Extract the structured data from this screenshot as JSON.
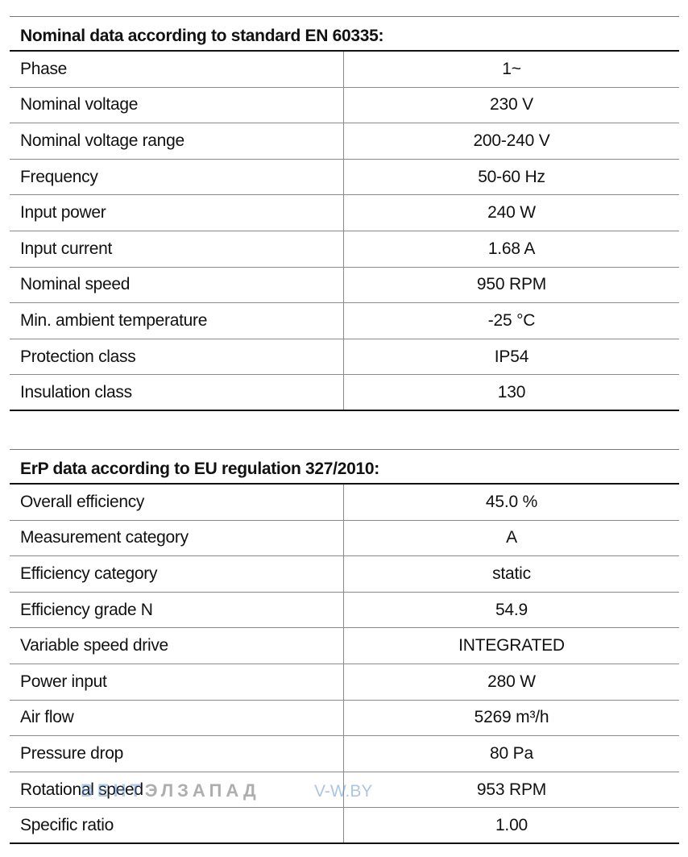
{
  "nominal": {
    "title": "Nominal data according to standard EN 60335:",
    "rows": [
      {
        "label": "Phase",
        "value": "1~"
      },
      {
        "label": "Nominal voltage",
        "value": "230 V"
      },
      {
        "label": "Nominal voltage range",
        "value": "200-240 V"
      },
      {
        "label": "Frequency",
        "value": "50-60 Hz"
      },
      {
        "label": "Input power",
        "value": "240 W"
      },
      {
        "label": "Input current",
        "value": "1.68 A"
      },
      {
        "label": "Nominal speed",
        "value": "950 RPM"
      },
      {
        "label": "Min. ambient temperature",
        "value": "-25 °C"
      },
      {
        "label": "Protection class",
        "value": "IP54"
      },
      {
        "label": "Insulation class",
        "value": "130"
      }
    ]
  },
  "erp": {
    "title": "ErP data according to EU regulation 327/2010:",
    "rows": [
      {
        "label": "Overall efficiency",
        "value": "45.0 %"
      },
      {
        "label": "Measurement category",
        "value": "A"
      },
      {
        "label": "Efficiency category",
        "value": "static"
      },
      {
        "label": "Efficiency grade N",
        "value": "54.9"
      },
      {
        "label": "Variable speed drive",
        "value": "INTEGRATED"
      },
      {
        "label": "Power input",
        "value": "280 W"
      },
      {
        "label": "Air flow",
        "value": "5269 m³/h"
      },
      {
        "label": "Pressure drop",
        "value": "80 Pa"
      },
      {
        "label": "Rotational speed",
        "value": "953 RPM"
      },
      {
        "label": "Specific ratio",
        "value": "1.00"
      }
    ]
  },
  "watermark": {
    "brand_a": "ВЕНТ",
    "brand_b": "ЭЛЗАПАД",
    "url": "V-W.BY"
  }
}
